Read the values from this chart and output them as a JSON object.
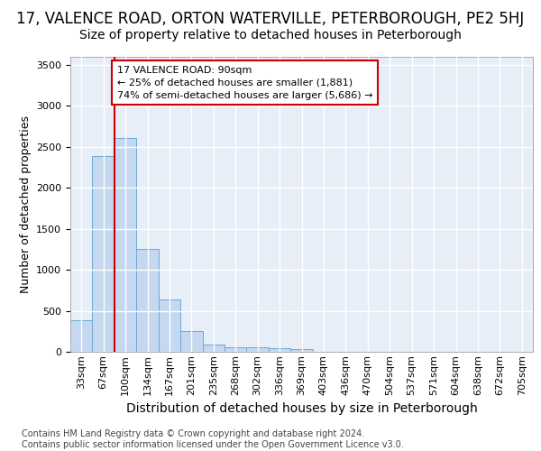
{
  "title_line1": "17, VALENCE ROAD, ORTON WATERVILLE, PETERBOROUGH, PE2 5HJ",
  "title_line2": "Size of property relative to detached houses in Peterborough",
  "xlabel": "Distribution of detached houses by size in Peterborough",
  "ylabel": "Number of detached properties",
  "footnote": "Contains HM Land Registry data © Crown copyright and database right 2024.\nContains public sector information licensed under the Open Government Licence v3.0.",
  "categories": [
    "33sqm",
    "67sqm",
    "100sqm",
    "134sqm",
    "167sqm",
    "201sqm",
    "235sqm",
    "268sqm",
    "302sqm",
    "336sqm",
    "369sqm",
    "403sqm",
    "436sqm",
    "470sqm",
    "504sqm",
    "537sqm",
    "571sqm",
    "604sqm",
    "638sqm",
    "672sqm",
    "705sqm"
  ],
  "bar_heights": [
    380,
    2390,
    2600,
    1250,
    640,
    255,
    90,
    60,
    55,
    45,
    30,
    0,
    0,
    0,
    0,
    0,
    0,
    0,
    0,
    0,
    0
  ],
  "bar_color": "#c5d8f0",
  "bar_edge_color": "#6aaad4",
  "background_color": "#e8eef8",
  "grid_color": "#ffffff",
  "ylim": [
    0,
    3600
  ],
  "yticks": [
    0,
    500,
    1000,
    1500,
    2000,
    2500,
    3000,
    3500
  ],
  "annotation_text": "17 VALENCE ROAD: 90sqm\n← 25% of detached houses are smaller (1,881)\n74% of semi-detached houses are larger (5,686) →",
  "annotation_box_color": "#ffffff",
  "annotation_box_edge_color": "#cc0000",
  "vline_color": "#cc0000",
  "vline_x_index": 1.5,
  "title_fontsize": 12,
  "subtitle_fontsize": 10,
  "tick_fontsize": 8,
  "ylabel_fontsize": 9,
  "xlabel_fontsize": 10,
  "footnote_fontsize": 7
}
